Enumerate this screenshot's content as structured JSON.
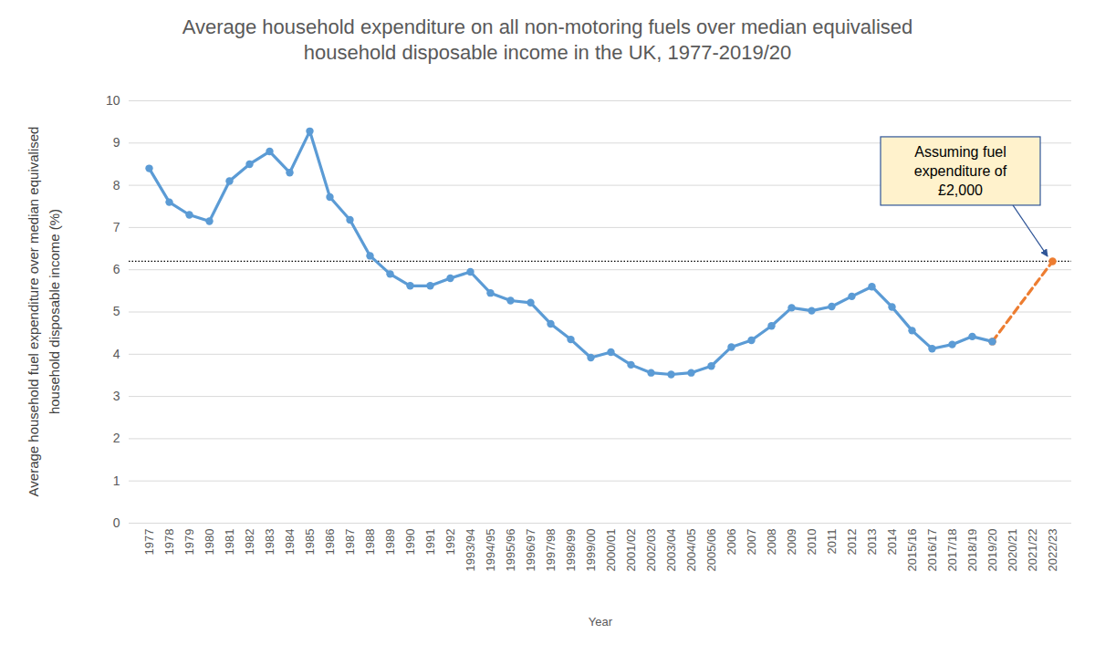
{
  "chart_data": {
    "type": "line",
    "title": "Average household expenditure on all non-motoring fuels over median equivalised household disposable income in the UK, 1977-2019/20",
    "x_label": "Year",
    "y_label": "Average household fuel expenditure over median equivalised household disposable income (%)",
    "categories": [
      "1977",
      "1978",
      "1979",
      "1980",
      "1981",
      "1982",
      "1983",
      "1984",
      "1985",
      "1986",
      "1987",
      "1988",
      "1989",
      "1990",
      "1991",
      "1992",
      "1993/94",
      "1994/95",
      "1995/96",
      "1996/97",
      "1997/98",
      "1998/99",
      "1999/00",
      "2000/01",
      "2001/02",
      "2002/03",
      "2003/04",
      "2004/05",
      "2005/06",
      "2006",
      "2007",
      "2008",
      "2009",
      "2010",
      "2011",
      "2012",
      "2013",
      "2014",
      "2015/16",
      "2016/17",
      "2017/18",
      "2018/19",
      "2019/20",
      "2020/21",
      "2021/22",
      "2022/23"
    ],
    "series": [
      {
        "color": "#5B9BD5",
        "marker": "circle",
        "line_style": "solid",
        "values": [
          8.4,
          7.6,
          7.3,
          7.15,
          8.1,
          8.5,
          8.8,
          8.3,
          9.28,
          7.72,
          7.18,
          6.33,
          5.9,
          5.62,
          5.62,
          5.8,
          5.95,
          5.45,
          5.27,
          5.22,
          4.72,
          4.35,
          3.92,
          4.05,
          3.75,
          3.56,
          3.52,
          3.56,
          3.72,
          4.17,
          4.33,
          4.67,
          5.1,
          5.03,
          5.13,
          5.37,
          5.6,
          5.12,
          4.56,
          4.13,
          4.23,
          4.42,
          4.3,
          null,
          null,
          null
        ]
      },
      {
        "color": "#ED7D31",
        "marker": "circle",
        "line_style": "dashed",
        "values": [
          null,
          null,
          null,
          null,
          null,
          null,
          null,
          null,
          null,
          null,
          null,
          null,
          null,
          null,
          null,
          null,
          null,
          null,
          null,
          null,
          null,
          null,
          null,
          null,
          null,
          null,
          null,
          null,
          null,
          null,
          null,
          null,
          null,
          null,
          null,
          null,
          null,
          null,
          null,
          null,
          null,
          null,
          4.3,
          null,
          null,
          6.2
        ]
      }
    ],
    "reference_lines": [
      {
        "y": 6.2
      }
    ],
    "annotations": [
      {
        "text": "Assuming fuel expenditure of £2,000",
        "x": "2022/23",
        "y": 6.2
      }
    ],
    "ylim": [
      0,
      10
    ],
    "yticks": [
      0,
      1,
      2,
      3,
      4,
      5,
      6,
      7,
      8,
      9,
      10
    ],
    "grid": true
  }
}
